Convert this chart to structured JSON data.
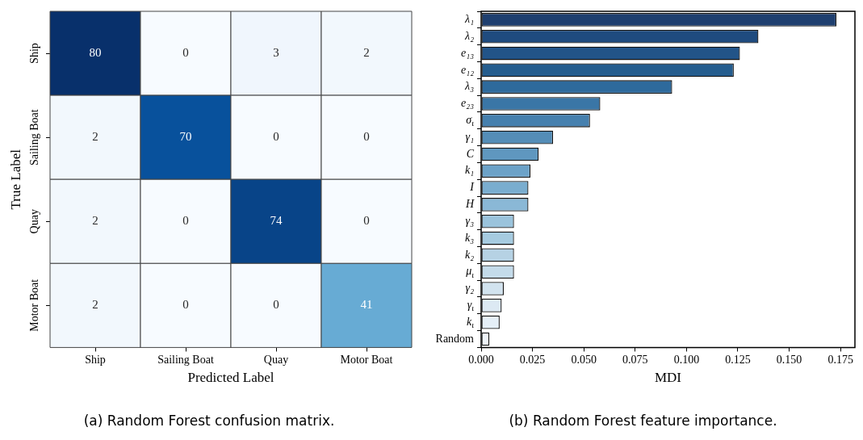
{
  "chart_data": [
    {
      "type": "heatmap",
      "title": "(a) Random Forest confusion matrix.",
      "xlabel": "Predicted Label",
      "ylabel": "True Label",
      "categories": [
        "Ship",
        "Sailing Boat",
        "Quay",
        "Motor Boat"
      ],
      "y_categories": [
        "Ship",
        "Sailing Boat",
        "Quay",
        "Motor Boat"
      ],
      "cells": [
        [
          80,
          0,
          3,
          2
        ],
        [
          2,
          70,
          0,
          0
        ],
        [
          2,
          0,
          74,
          0
        ],
        [
          2,
          0,
          0,
          41
        ]
      ],
      "data_labels": true
    },
    {
      "type": "bar",
      "orientation": "horizontal",
      "title": "(b) Random Forest feature importance.",
      "xlabel": "MDI",
      "categories": [
        "λ₁",
        "λ₂",
        "e₁₃",
        "e₁₂",
        "λ₃",
        "e₂₃",
        "σ$_{ι}$",
        "γ₁",
        "C",
        "k₁",
        "I",
        "H",
        "γ₃",
        "k₃",
        "k₂",
        "μ$_{ι}$",
        "γ₂",
        "γ$_{ι}$",
        "k$_{ι}$",
        "Random"
      ],
      "values": [
        0.173,
        0.135,
        0.126,
        0.123,
        0.093,
        0.058,
        0.053,
        0.035,
        0.028,
        0.024,
        0.023,
        0.023,
        0.016,
        0.016,
        0.016,
        0.016,
        0.011,
        0.01,
        0.009,
        0.004
      ],
      "colors": [
        "#1f3f6f",
        "#1f4b7f",
        "#225488",
        "#255d8e",
        "#2e6a9c",
        "#3a76a6",
        "#4680ae",
        "#548db7",
        "#5f97bf",
        "#6ca2c8",
        "#7aadcf",
        "#8ab8d6",
        "#9ac3dc",
        "#a6cbe0",
        "#b6d2e4",
        "#c4dbea",
        "#d2e3ef",
        "#dce9f3",
        "#e5eff7",
        "#eef4fa"
      ],
      "xlim": [
        0,
        0.182
      ],
      "xticks": [
        {
          "value": 0,
          "label": "0.000"
        },
        {
          "value": 0.025,
          "label": "0.025"
        },
        {
          "value": 0.05,
          "label": "0.050"
        },
        {
          "value": 0.075,
          "label": "0.075"
        },
        {
          "value": 0.1,
          "label": "0.100"
        },
        {
          "value": 0.125,
          "label": "0.125"
        },
        {
          "value": 0.15,
          "label": "0.150"
        },
        {
          "value": 0.175,
          "label": "0.175"
        }
      ],
      "grid": false,
      "legend": false
    }
  ]
}
